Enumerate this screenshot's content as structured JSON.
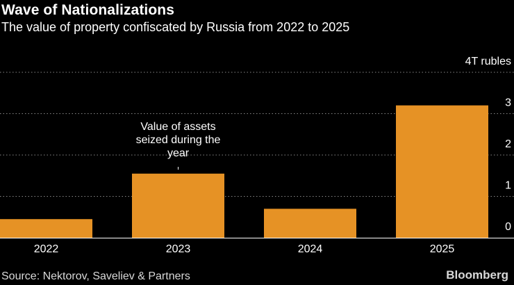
{
  "header": {
    "title": "Wave of Nationalizations",
    "subtitle": "The value of property confiscated by Russia from 2022 to 2025"
  },
  "footer": {
    "source": "Source: Nektorov, Saveliev & Partners",
    "brand": "Bloomberg"
  },
  "colors": {
    "bar": "#e69225",
    "gridline": "#8a8a8a",
    "text": "#ffffff"
  },
  "chart_data": {
    "type": "bar",
    "categories": [
      "2022",
      "2023",
      "2024",
      "2025"
    ],
    "series": [
      {
        "values": [
          0.45,
          1.55,
          0.7,
          3.2
        ]
      }
    ],
    "ylim": [
      0,
      4
    ],
    "y_ticks": [
      {
        "value": 0,
        "label": "0"
      },
      {
        "value": 1,
        "label": "1"
      },
      {
        "value": 2,
        "label": "2"
      },
      {
        "value": 3,
        "label": "3"
      },
      {
        "value": 4,
        "label": "4T rubles"
      }
    ],
    "annotation": {
      "category": "2023",
      "lines": [
        "Value of assets",
        "seized during the",
        "year"
      ]
    },
    "grid": true,
    "y_axis_side": "right"
  }
}
